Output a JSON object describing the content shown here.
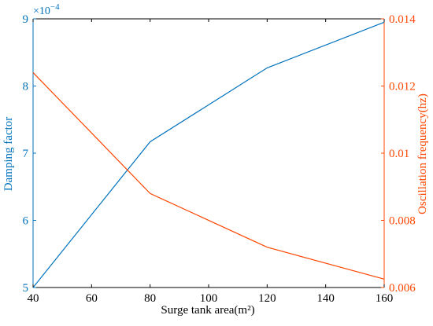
{
  "chart_data": {
    "type": "line",
    "x": [
      40,
      80,
      120,
      160
    ],
    "xlim": [
      40,
      160
    ],
    "xticks": [
      40,
      60,
      80,
      100,
      120,
      140,
      160
    ],
    "xlabel": "Surge tank area(m²)",
    "grid": false,
    "series": [
      {
        "name": "Damping factor",
        "axis": "left",
        "color": "#0072BD",
        "values": [
          5.0,
          7.17,
          8.27,
          8.95
        ]
      },
      {
        "name": "Oscillation frequency(hz)",
        "axis": "right",
        "color": "#FF4500",
        "values": [
          0.0124,
          0.0088,
          0.0072,
          0.00625
        ]
      }
    ],
    "y_left": {
      "label": "Damping factor",
      "lim": [
        5,
        9
      ],
      "ticks": [
        5,
        6,
        7,
        8,
        9
      ],
      "multiplier_base": "×10",
      "multiplier_exp": "−4",
      "color": "#0072BD"
    },
    "y_right": {
      "label": "Oscillation frequency(hz)",
      "lim": [
        0.006,
        0.014
      ],
      "ticks": [
        0.006,
        0.008,
        0.01,
        0.012,
        0.014
      ],
      "tick_labels": [
        "0.006",
        "0.008",
        "0.01",
        "0.012",
        "0.014"
      ],
      "color": "#FF4500"
    }
  }
}
